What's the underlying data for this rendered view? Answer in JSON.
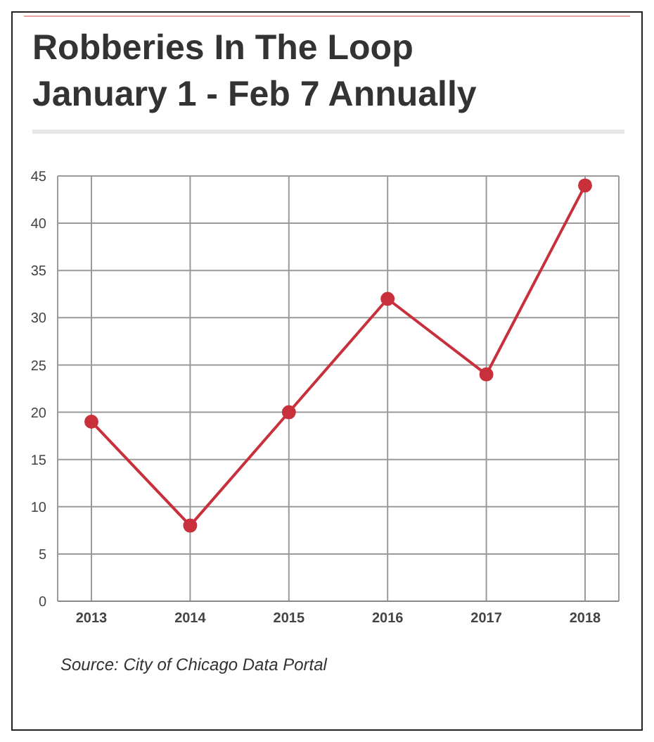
{
  "chart_data": {
    "type": "line",
    "title": "Robberies In The Loop\nJanuary 1 - Feb 7 Annually",
    "categories": [
      "2013",
      "2014",
      "2015",
      "2016",
      "2017",
      "2018"
    ],
    "series": [
      {
        "color": "#c8303c",
        "values": [
          19,
          8,
          20,
          32,
          24,
          44
        ]
      }
    ],
    "ylim": [
      0,
      45
    ],
    "yticks": [
      0,
      5,
      10,
      15,
      20,
      25,
      30,
      35,
      40,
      45
    ],
    "grid": true,
    "marker": "circle",
    "line_style": "solid",
    "annotations": [
      "Source: City of Chicago Data Portal"
    ]
  }
}
